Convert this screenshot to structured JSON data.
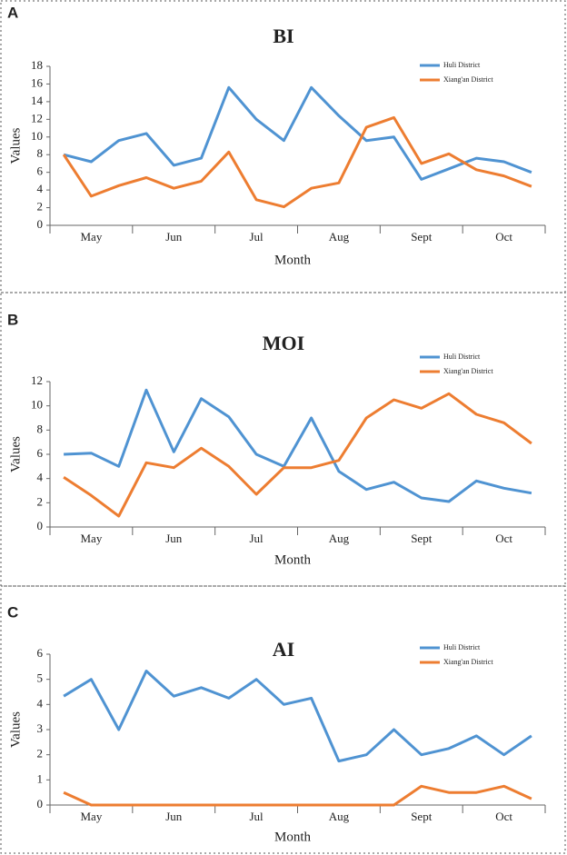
{
  "chart_data": [
    {
      "type": "line",
      "panel": "A",
      "title": "BI",
      "ylabel": "Values",
      "xlabel": "Month",
      "categories": [
        null,
        "May",
        null,
        null,
        "Jun",
        null,
        null,
        "Jul",
        null,
        null,
        "Aug",
        null,
        null,
        "Sept",
        null,
        null,
        "Oct",
        null
      ],
      "series": [
        {
          "name": "Huli District",
          "color": "#4f93d2",
          "values": [
            8,
            7.2,
            9.6,
            10.4,
            6.8,
            7.6,
            15.6,
            12,
            9.6,
            15.6,
            12.4,
            9.6,
            10,
            5.2,
            6.4,
            7.6,
            7.2,
            6
          ]
        },
        {
          "name": "Xiang'an District",
          "color": "#ed7d31",
          "values": [
            8,
            3.3,
            4.5,
            5.4,
            4.2,
            5,
            8.3,
            2.9,
            2.1,
            4.2,
            4.8,
            11.1,
            12.2,
            7,
            8.1,
            6.3,
            5.6,
            4.4
          ]
        }
      ],
      "ylim": [
        0,
        18
      ],
      "yticks": [
        0,
        2,
        4,
        6,
        8,
        10,
        12,
        14,
        16,
        18
      ],
      "legend": "upper right"
    },
    {
      "type": "line",
      "panel": "B",
      "title": "MOI",
      "ylabel": "Values",
      "xlabel": "Month",
      "categories": [
        null,
        "May",
        null,
        null,
        "Jun",
        null,
        null,
        "Jul",
        null,
        null,
        "Aug",
        null,
        null,
        "Sept",
        null,
        null,
        "Oct",
        null
      ],
      "series": [
        {
          "name": "Huli District",
          "color": "#4f93d2",
          "values": [
            6,
            6.1,
            5,
            11.3,
            6.2,
            10.6,
            9.1,
            6,
            5,
            9,
            4.6,
            3.1,
            3.7,
            2.4,
            2.1,
            3.8,
            3.2,
            2.8
          ]
        },
        {
          "name": "Xiang'an District",
          "color": "#ed7d31",
          "values": [
            4.1,
            2.6,
            0.9,
            5.3,
            4.9,
            6.5,
            5,
            2.7,
            4.9,
            4.9,
            5.5,
            9,
            10.5,
            9.8,
            11,
            9.3,
            8.6,
            6.9
          ]
        }
      ],
      "ylim": [
        0,
        12
      ],
      "yticks": [
        0,
        2,
        4,
        6,
        8,
        10,
        12
      ],
      "legend": "upper right"
    },
    {
      "type": "line",
      "panel": "C",
      "title": "AI",
      "ylabel": "Values",
      "xlabel": "Month",
      "categories": [
        null,
        "May",
        null,
        null,
        "Jun",
        null,
        null,
        "Jul",
        null,
        null,
        "Aug",
        null,
        null,
        "Sept",
        null,
        null,
        "Oct",
        null
      ],
      "series": [
        {
          "name": "Huli District",
          "color": "#4f93d2",
          "values": [
            4.33,
            5,
            3,
            5.33,
            4.33,
            4.67,
            4.25,
            5,
            4,
            4.25,
            1.75,
            2,
            3,
            2,
            2.25,
            2.75,
            2,
            2.75
          ]
        },
        {
          "name": "Xiang'an District",
          "color": "#ed7d31",
          "values": [
            0.5,
            0,
            0,
            0,
            0,
            0,
            0,
            0,
            0,
            0,
            0,
            0,
            0,
            0.75,
            0.5,
            0.5,
            0.75,
            0.25
          ]
        }
      ],
      "ylim": [
        0,
        6
      ],
      "yticks": [
        0,
        1,
        2,
        3,
        4,
        5,
        6
      ],
      "legend": "upper right"
    }
  ]
}
